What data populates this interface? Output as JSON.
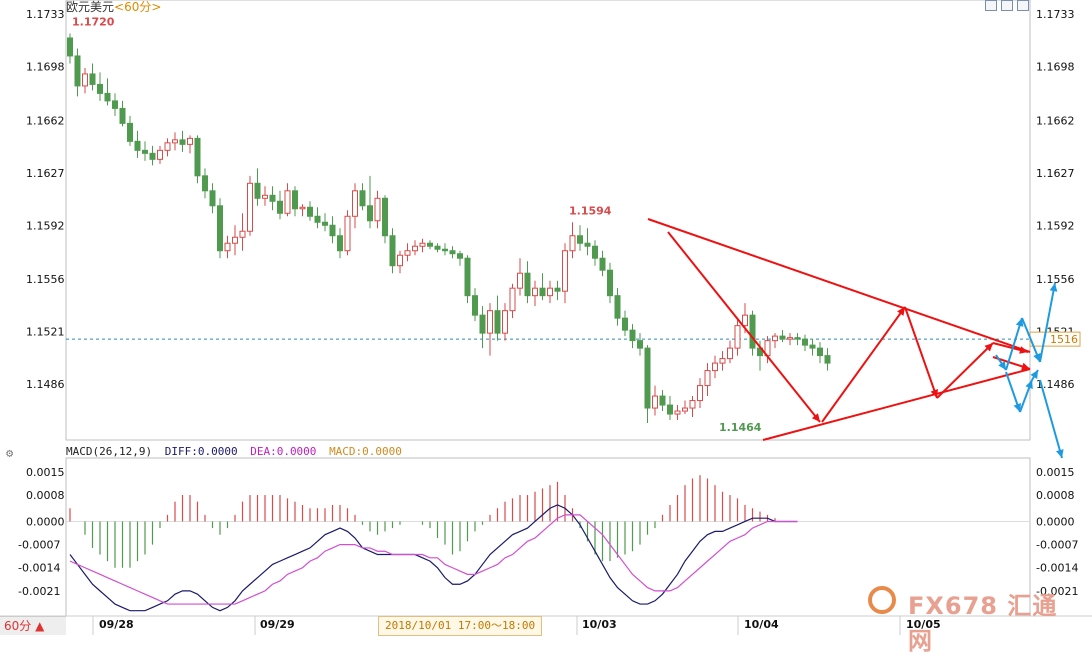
{
  "header": {
    "title": "欧元美元",
    "period_tag": "<60分>"
  },
  "legend": {
    "name": "MACD(26,12,9)",
    "diff": "DIFF:0.0000",
    "dea": "DEA:0.0000",
    "macd": "MACD:0.0000"
  },
  "footer": {
    "period_button": "60分 ▲",
    "time_range": "2018/10/01 17:00～18:00"
  },
  "watermark": {
    "text": "FX678 汇通网"
  },
  "colors": {
    "up": "#d94b4b",
    "down": "#4f9a4f",
    "diff": "#1a1a6e",
    "dea": "#d14fd1",
    "trend": "#ee1111",
    "projection": "#1e9be0"
  },
  "chart_data": [
    {
      "type": "candlestick",
      "title": "欧元美元",
      "y_ticks": [
        "1.1733",
        "1.1698",
        "1.1662",
        "1.1627",
        "1.1592",
        "1.1556",
        "1.1521",
        "1.1486"
      ],
      "ylim": [
        1.1442,
        1.1733
      ],
      "x_date_labels": [
        "09/28",
        "09/29",
        "10/03",
        "10/04",
        "10/05"
      ],
      "reference_price": 1.1516,
      "reference_label": "1516",
      "annotations": [
        {
          "text": "1.1720",
          "bar": 0,
          "price": 1.172
        },
        {
          "text": "1.1594",
          "bar": 66,
          "price": 1.1594
        },
        {
          "text": "1.1464",
          "bar": 86,
          "price": 1.1464
        }
      ],
      "candles": [
        [
          1.1717,
          1.172,
          1.17,
          1.1705
        ],
        [
          1.1705,
          1.171,
          1.1678,
          1.1685
        ],
        [
          1.1685,
          1.1697,
          1.168,
          1.1693
        ],
        [
          1.1693,
          1.17,
          1.1682,
          1.1686
        ],
        [
          1.1686,
          1.1694,
          1.1675,
          1.168
        ],
        [
          1.168,
          1.169,
          1.1672,
          1.1675
        ],
        [
          1.1675,
          1.168,
          1.1665,
          1.167
        ],
        [
          1.167,
          1.1675,
          1.1658,
          1.166
        ],
        [
          1.166,
          1.1665,
          1.1645,
          1.1648
        ],
        [
          1.1648,
          1.1655,
          1.1637,
          1.1642
        ],
        [
          1.1642,
          1.1648,
          1.1635,
          1.164
        ],
        [
          1.164,
          1.1645,
          1.1632,
          1.1636
        ],
        [
          1.1636,
          1.1645,
          1.1633,
          1.1642
        ],
        [
          1.1642,
          1.165,
          1.1638,
          1.1647
        ],
        [
          1.1647,
          1.1654,
          1.1642,
          1.1649
        ],
        [
          1.1649,
          1.1655,
          1.1641,
          1.1646
        ],
        [
          1.1646,
          1.1652,
          1.164,
          1.165
        ],
        [
          1.165,
          1.1652,
          1.162,
          1.1625
        ],
        [
          1.1625,
          1.163,
          1.161,
          1.1615
        ],
        [
          1.1615,
          1.162,
          1.16,
          1.1605
        ],
        [
          1.1605,
          1.161,
          1.157,
          1.1575
        ],
        [
          1.1575,
          1.1585,
          1.157,
          1.158
        ],
        [
          1.158,
          1.1592,
          1.1572,
          1.1584
        ],
        [
          1.1584,
          1.16,
          1.1575,
          1.1588
        ],
        [
          1.1588,
          1.1625,
          1.1585,
          1.162
        ],
        [
          1.162,
          1.163,
          1.1605,
          1.161
        ],
        [
          1.161,
          1.1618,
          1.1605,
          1.1612
        ],
        [
          1.1612,
          1.1618,
          1.1602,
          1.1608
        ],
        [
          1.1608,
          1.1615,
          1.1596,
          1.16
        ],
        [
          1.16,
          1.162,
          1.1598,
          1.1615
        ],
        [
          1.1615,
          1.1618,
          1.1598,
          1.1603
        ],
        [
          1.1603,
          1.1606,
          1.1598,
          1.1604
        ],
        [
          1.1604,
          1.1608,
          1.1595,
          1.1598
        ],
        [
          1.1598,
          1.1604,
          1.159,
          1.1594
        ],
        [
          1.1594,
          1.16,
          1.1588,
          1.1592
        ],
        [
          1.1592,
          1.1598,
          1.158,
          1.1585
        ],
        [
          1.1585,
          1.159,
          1.157,
          1.1575
        ],
        [
          1.1575,
          1.1602,
          1.1572,
          1.1598
        ],
        [
          1.1598,
          1.162,
          1.159,
          1.1615
        ],
        [
          1.1615,
          1.162,
          1.1602,
          1.1605
        ],
        [
          1.1605,
          1.1625,
          1.159,
          1.1595
        ],
        [
          1.1595,
          1.1615,
          1.159,
          1.161
        ],
        [
          1.161,
          1.1612,
          1.158,
          1.1585
        ],
        [
          1.1585,
          1.159,
          1.156,
          1.1565
        ],
        [
          1.1565,
          1.1575,
          1.156,
          1.1572
        ],
        [
          1.1572,
          1.158,
          1.1568,
          1.1575
        ],
        [
          1.1575,
          1.1582,
          1.1572,
          1.1578
        ],
        [
          1.1578,
          1.1583,
          1.1574,
          1.158
        ],
        [
          1.158,
          1.1582,
          1.1576,
          1.1578
        ],
        [
          1.1578,
          1.158,
          1.1574,
          1.1576
        ],
        [
          1.1576,
          1.158,
          1.1572,
          1.1575
        ],
        [
          1.1575,
          1.1578,
          1.157,
          1.1573
        ],
        [
          1.1573,
          1.1575,
          1.1565,
          1.157
        ],
        [
          1.157,
          1.1572,
          1.154,
          1.1545
        ],
        [
          1.1545,
          1.155,
          1.1528,
          1.1532
        ],
        [
          1.1532,
          1.1538,
          1.151,
          1.152
        ],
        [
          1.152,
          1.154,
          1.1505,
          1.1535
        ],
        [
          1.1535,
          1.1545,
          1.1515,
          1.152
        ],
        [
          1.152,
          1.154,
          1.1515,
          1.1535
        ],
        [
          1.1535,
          1.1553,
          1.153,
          1.155
        ],
        [
          1.155,
          1.157,
          1.1545,
          1.156
        ],
        [
          1.156,
          1.1568,
          1.154,
          1.1545
        ],
        [
          1.1545,
          1.1555,
          1.1538,
          1.155
        ],
        [
          1.155,
          1.156,
          1.1542,
          1.1545
        ],
        [
          1.1545,
          1.1555,
          1.154,
          1.155
        ],
        [
          1.155,
          1.1555,
          1.1542,
          1.1548
        ],
        [
          1.1548,
          1.158,
          1.154,
          1.1575
        ],
        [
          1.1575,
          1.1594,
          1.157,
          1.1585
        ],
        [
          1.1585,
          1.1592,
          1.1575,
          1.158
        ],
        [
          1.158,
          1.159,
          1.1572,
          1.1578
        ],
        [
          1.1578,
          1.1582,
          1.1565,
          1.157
        ],
        [
          1.157,
          1.1575,
          1.1558,
          1.1562
        ],
        [
          1.1562,
          1.1567,
          1.154,
          1.1545
        ],
        [
          1.1545,
          1.155,
          1.1525,
          1.153
        ],
        [
          1.153,
          1.1535,
          1.1518,
          1.1522
        ],
        [
          1.1522,
          1.1526,
          1.151,
          1.1515
        ],
        [
          1.1515,
          1.152,
          1.1505,
          1.151
        ],
        [
          1.151,
          1.1512,
          1.146,
          1.147
        ],
        [
          1.147,
          1.1485,
          1.1465,
          1.1478
        ],
        [
          1.1478,
          1.1482,
          1.1468,
          1.1472
        ],
        [
          1.1472,
          1.1478,
          1.1462,
          1.1466
        ],
        [
          1.1466,
          1.1472,
          1.1462,
          1.1468
        ],
        [
          1.1468,
          1.1475,
          1.1466,
          1.147
        ],
        [
          1.147,
          1.1478,
          1.1464,
          1.1475
        ],
        [
          1.1475,
          1.149,
          1.147,
          1.1485
        ],
        [
          1.1485,
          1.15,
          1.1478,
          1.1495
        ],
        [
          1.1495,
          1.1505,
          1.149,
          1.15
        ],
        [
          1.15,
          1.1508,
          1.1495,
          1.1503
        ],
        [
          1.1503,
          1.1515,
          1.15,
          1.151
        ],
        [
          1.151,
          1.153,
          1.1505,
          1.1525
        ],
        [
          1.1525,
          1.154,
          1.152,
          1.1532
        ],
        [
          1.1532,
          1.1535,
          1.1505,
          1.151
        ],
        [
          1.151,
          1.1515,
          1.1495,
          1.1505
        ],
        [
          1.1505,
          1.1518,
          1.15,
          1.1515
        ],
        [
          1.1515,
          1.152,
          1.151,
          1.1518
        ],
        [
          1.1518,
          1.1522,
          1.1514,
          1.1516
        ],
        [
          1.1516,
          1.152,
          1.1512,
          1.1517
        ],
        [
          1.1517,
          1.152,
          1.1512,
          1.1516
        ],
        [
          1.1516,
          1.1519,
          1.1508,
          1.1512
        ],
        [
          1.1512,
          1.1516,
          1.1505,
          1.151
        ],
        [
          1.151,
          1.1514,
          1.15,
          1.1505
        ],
        [
          1.1505,
          1.151,
          1.1495,
          1.15
        ]
      ]
    },
    {
      "type": "line",
      "title": "MACD(26,12,9)",
      "y_ticks": [
        "0.0015",
        "0.0008",
        "0.0000",
        "-0.0007",
        "-0.0014",
        "-0.0021"
      ],
      "ylim": [
        -0.0028,
        0.0018
      ],
      "series": [
        {
          "name": "DIFF",
          "values": [
            -0.001,
            -0.0013,
            -0.0016,
            -0.0019,
            -0.0021,
            -0.0023,
            -0.0025,
            -0.0026,
            -0.0027,
            -0.0027,
            -0.0027,
            -0.0026,
            -0.0025,
            -0.0024,
            -0.0022,
            -0.0021,
            -0.0021,
            -0.0022,
            -0.0024,
            -0.0026,
            -0.0027,
            -0.0026,
            -0.0024,
            -0.0021,
            -0.0019,
            -0.0017,
            -0.0015,
            -0.0013,
            -0.0012,
            -0.0011,
            -0.001,
            -0.0009,
            -0.0008,
            -0.0006,
            -0.0004,
            -0.0003,
            -0.0002,
            -0.0003,
            -0.0005,
            -0.0008,
            -0.0009,
            -0.001,
            -0.001,
            -0.001,
            -0.001,
            -0.001,
            -0.001,
            -0.0011,
            -0.0012,
            -0.0014,
            -0.0017,
            -0.0019,
            -0.0019,
            -0.0018,
            -0.0016,
            -0.0013,
            -0.001,
            -0.0008,
            -0.0006,
            -0.0004,
            -0.0003,
            -0.0002,
            0.0,
            0.0002,
            0.0004,
            0.0005,
            0.0004,
            0.0002,
            -0.0001,
            -0.0005,
            -0.0009,
            -0.0013,
            -0.0017,
            -0.002,
            -0.0022,
            -0.0024,
            -0.0025,
            -0.0025,
            -0.0024,
            -0.0022,
            -0.0019,
            -0.0016,
            -0.0012,
            -0.0009,
            -0.0006,
            -0.0004,
            -0.0003,
            -0.0003,
            -0.0002,
            -0.0001,
            0.0,
            0.0001,
            0.0001,
            0.0001,
            0.0,
            0.0,
            0.0,
            0.0
          ]
        },
        {
          "name": "DEA",
          "values": [
            -0.0012,
            -0.0013,
            -0.0014,
            -0.0015,
            -0.0016,
            -0.0017,
            -0.0018,
            -0.0019,
            -0.002,
            -0.0021,
            -0.0022,
            -0.0023,
            -0.0024,
            -0.0025,
            -0.0025,
            -0.0025,
            -0.0025,
            -0.0025,
            -0.0025,
            -0.0025,
            -0.0025,
            -0.0025,
            -0.0025,
            -0.0024,
            -0.0023,
            -0.0022,
            -0.0021,
            -0.0019,
            -0.0018,
            -0.0016,
            -0.0015,
            -0.0014,
            -0.0012,
            -0.0011,
            -0.0009,
            -0.0008,
            -0.0007,
            -0.0007,
            -0.0007,
            -0.0008,
            -0.0008,
            -0.0009,
            -0.0009,
            -0.001,
            -0.001,
            -0.001,
            -0.001,
            -0.001,
            -0.0011,
            -0.0011,
            -0.0013,
            -0.0014,
            -0.0015,
            -0.0016,
            -0.0016,
            -0.0015,
            -0.0014,
            -0.0013,
            -0.0011,
            -0.001,
            -0.0008,
            -0.0006,
            -0.0005,
            -0.0003,
            -0.0001,
            0.0001,
            0.0002,
            0.0002,
            0.0002,
            0.0,
            -0.0002,
            -0.0004,
            -0.0007,
            -0.001,
            -0.0013,
            -0.0016,
            -0.0018,
            -0.002,
            -0.0021,
            -0.0021,
            -0.0021,
            -0.002,
            -0.0018,
            -0.0016,
            -0.0014,
            -0.0012,
            -0.001,
            -0.0008,
            -0.0006,
            -0.0005,
            -0.0004,
            -0.0002,
            -0.0001,
            0.0,
            0.0,
            0.0,
            0.0,
            0.0
          ]
        },
        {
          "name": "MACD",
          "values": [
            0.0004,
            0.0,
            -0.0004,
            -0.0008,
            -0.001,
            -0.0012,
            -0.0014,
            -0.0014,
            -0.0014,
            -0.0012,
            -0.001,
            -0.0007,
            -0.0002,
            0.0002,
            0.0006,
            0.0008,
            0.0008,
            0.0006,
            0.0002,
            -0.0002,
            -0.0004,
            -0.0002,
            0.0002,
            0.0006,
            0.0008,
            0.0008,
            0.0008,
            0.0008,
            0.0008,
            0.0007,
            0.0006,
            0.0005,
            0.0004,
            0.0004,
            0.0004,
            0.0005,
            0.0005,
            0.0004,
            0.0002,
            -0.0001,
            -0.0003,
            -0.0004,
            -0.0003,
            -0.0002,
            -0.0001,
            0.0,
            0.0,
            -0.0001,
            -0.0002,
            -0.0005,
            -0.0007,
            -0.001,
            -0.0009,
            -0.0006,
            -0.0003,
            -0.0001,
            0.0002,
            0.0004,
            0.0006,
            0.0007,
            0.0008,
            0.0008,
            0.0009,
            0.001,
            0.0011,
            0.0012,
            0.0008,
            0.0004,
            -0.0002,
            -0.0006,
            -0.001,
            -0.0012,
            -0.0012,
            -0.0011,
            -0.001,
            -0.0009,
            -0.0007,
            -0.0004,
            -0.0002,
            0.0002,
            0.0005,
            0.0008,
            0.0011,
            0.0013,
            0.0014,
            0.0013,
            0.0011,
            0.0009,
            0.0008,
            0.0007,
            0.0005,
            0.0004,
            0.0003,
            0.0002,
            0.0001,
            0.0,
            0.0,
            0.0
          ]
        }
      ]
    }
  ]
}
